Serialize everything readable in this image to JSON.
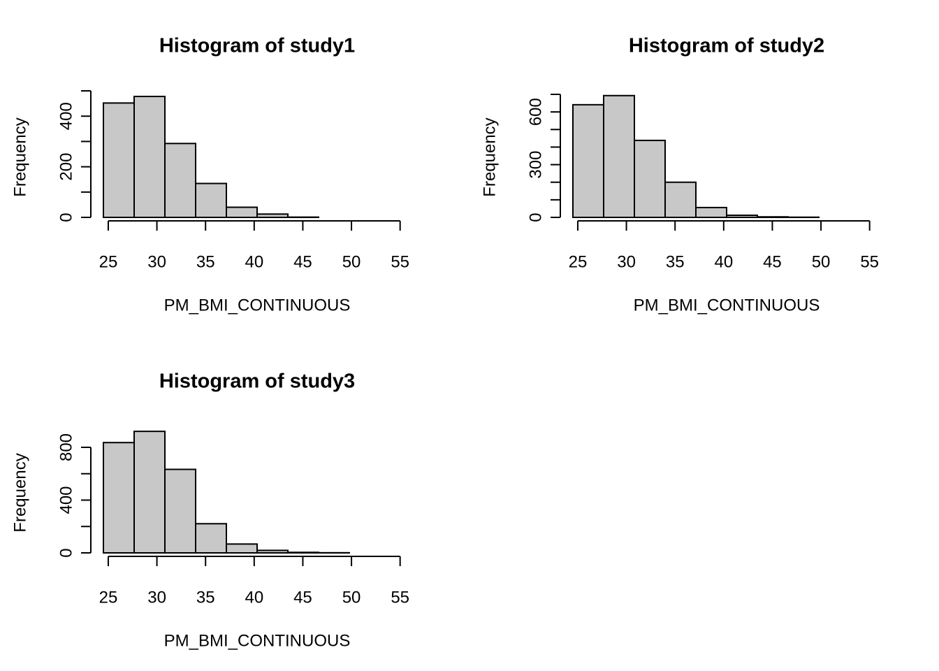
{
  "chart_data": [
    {
      "type": "bar",
      "title": "Histogram of study1",
      "xlabel": "PM_BMI_CONTINUOUS",
      "ylabel": "Frequency",
      "bin_edges": [
        24.5,
        27.66,
        30.82,
        33.98,
        37.14,
        40.3,
        43.46,
        46.62,
        49.78,
        52.94,
        56.1
      ],
      "values": [
        452,
        478,
        292,
        134,
        40,
        13,
        1,
        0,
        0,
        0
      ],
      "xlim": [
        24.5,
        56.1
      ],
      "ylim": [
        0,
        500
      ],
      "x_ticks": [
        25,
        30,
        35,
        40,
        45,
        50,
        55
      ],
      "y_ticks": [
        0,
        100,
        200,
        300,
        400,
        500
      ],
      "y_tick_labels": [
        "0",
        "",
        "200",
        "",
        "400",
        ""
      ],
      "grid": false
    },
    {
      "type": "bar",
      "title": "Histogram of study2",
      "xlabel": "PM_BMI_CONTINUOUS",
      "ylabel": "Frequency",
      "bin_edges": [
        24.5,
        27.66,
        30.82,
        33.98,
        37.14,
        40.3,
        43.46,
        46.62,
        49.78,
        52.94,
        56.1
      ],
      "values": [
        641,
        693,
        438,
        200,
        56,
        12,
        3,
        1,
        0,
        0
      ],
      "xlim": [
        24.5,
        56.1
      ],
      "ylim": [
        0,
        700
      ],
      "x_ticks": [
        25,
        30,
        35,
        40,
        45,
        50,
        55
      ],
      "y_ticks": [
        0,
        100,
        200,
        300,
        400,
        500,
        600,
        700
      ],
      "y_tick_labels": [
        "0",
        "",
        "",
        "300",
        "",
        "",
        "600",
        ""
      ],
      "grid": false
    },
    {
      "type": "bar",
      "title": "Histogram of study3",
      "xlabel": "PM_BMI_CONTINUOUS",
      "ylabel": "Frequency",
      "bin_edges": [
        24.5,
        27.66,
        30.82,
        33.98,
        37.14,
        40.3,
        43.46,
        46.62,
        49.78,
        52.94,
        56.1
      ],
      "values": [
        836,
        921,
        633,
        221,
        67,
        19,
        4,
        1,
        0,
        0
      ],
      "xlim": [
        24.5,
        56.1
      ],
      "ylim": [
        0,
        800
      ],
      "x_ticks": [
        25,
        30,
        35,
        40,
        45,
        50,
        55
      ],
      "y_ticks": [
        0,
        200,
        400,
        600,
        800
      ],
      "y_tick_labels": [
        "0",
        "",
        "400",
        "",
        "800"
      ],
      "grid": false
    }
  ]
}
